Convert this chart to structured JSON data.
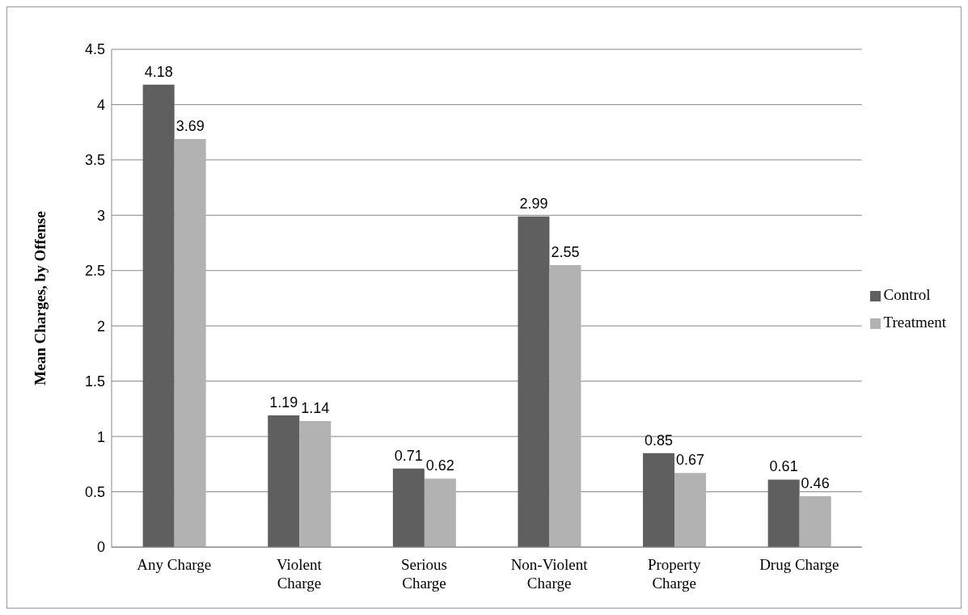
{
  "chart_data": {
    "type": "bar",
    "ylabel": "Mean Charges, by Offense",
    "categories": [
      "Any Charge",
      "Violent Charge",
      "Serious Charge",
      "Non-Violent Charge",
      "Property Charge",
      "Drug Charge"
    ],
    "series": [
      {
        "name": "Control",
        "color": "#5f5f5f",
        "values": [
          4.18,
          1.19,
          0.71,
          2.99,
          0.85,
          0.61
        ]
      },
      {
        "name": "Treatment",
        "color": "#b2b2b2",
        "values": [
          3.69,
          1.14,
          0.62,
          2.55,
          0.67,
          0.46
        ]
      }
    ],
    "ylim": [
      0,
      4.5
    ],
    "yticks": [
      0,
      0.5,
      1,
      1.5,
      2,
      2.5,
      3,
      3.5,
      4,
      4.5
    ],
    "grid": "y",
    "legend": "right",
    "data_labels": true
  }
}
